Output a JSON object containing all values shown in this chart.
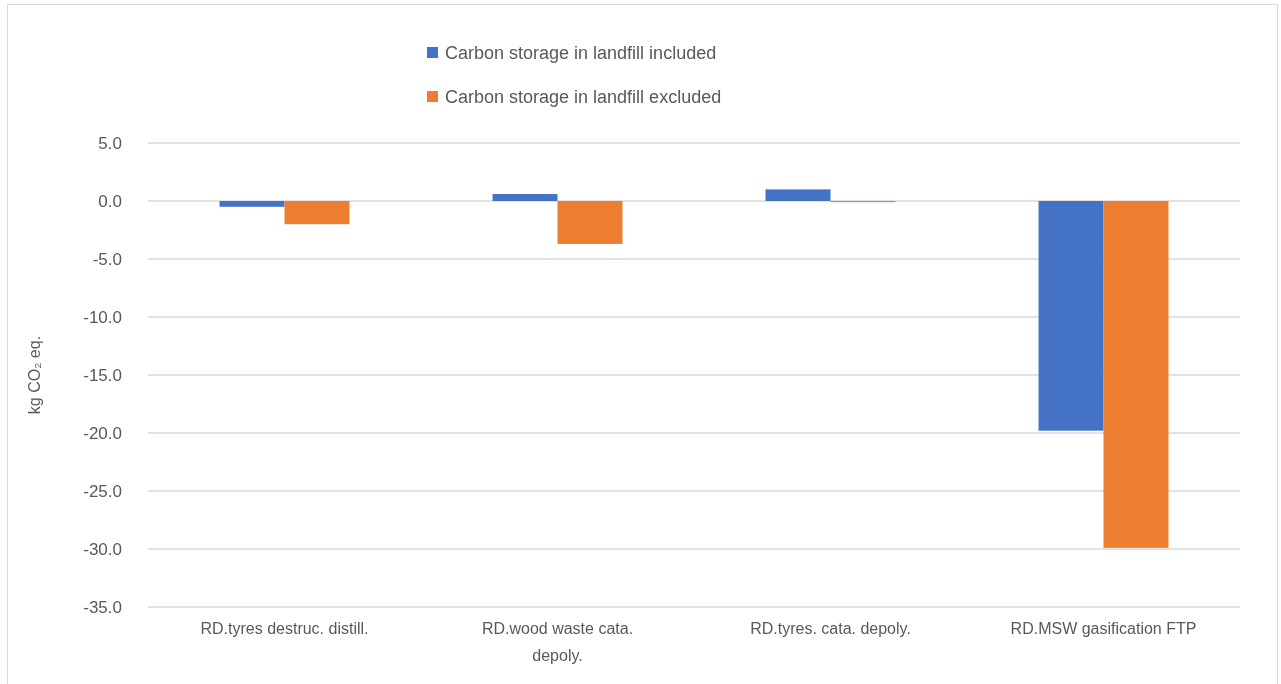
{
  "chart_data": {
    "type": "bar",
    "categories": [
      "RD.tyres destruc. distill.",
      "RD.wood waste cata. depoly.",
      "RD.tyres. cata. depoly.",
      "RD.MSW gasification FTP"
    ],
    "series": [
      {
        "name": "Carbon storage in landfill included",
        "color": "#4472c4",
        "values": [
          -0.5,
          0.6,
          1.0,
          -19.8
        ]
      },
      {
        "name": "Carbon storage in landfill excluded",
        "color": "#ed7d31",
        "values": [
          -2.0,
          -3.7,
          -0.1,
          -29.9
        ]
      }
    ],
    "ylabel": "kg CO₂ eq.",
    "ylim": [
      -35,
      5
    ],
    "yticks": [
      {
        "value": 5,
        "label": "5.0"
      },
      {
        "value": 0,
        "label": "0.0"
      },
      {
        "value": -5,
        "label": "-5.0"
      },
      {
        "value": -10,
        "label": "-10.0"
      },
      {
        "value": -15,
        "label": "-15.0"
      },
      {
        "value": -20,
        "label": "-20.0"
      },
      {
        "value": -25,
        "label": "-25.0"
      },
      {
        "value": -30,
        "label": "-30.0"
      },
      {
        "value": -35,
        "label": "-35.0"
      }
    ],
    "grid": "y",
    "legend": "top"
  }
}
